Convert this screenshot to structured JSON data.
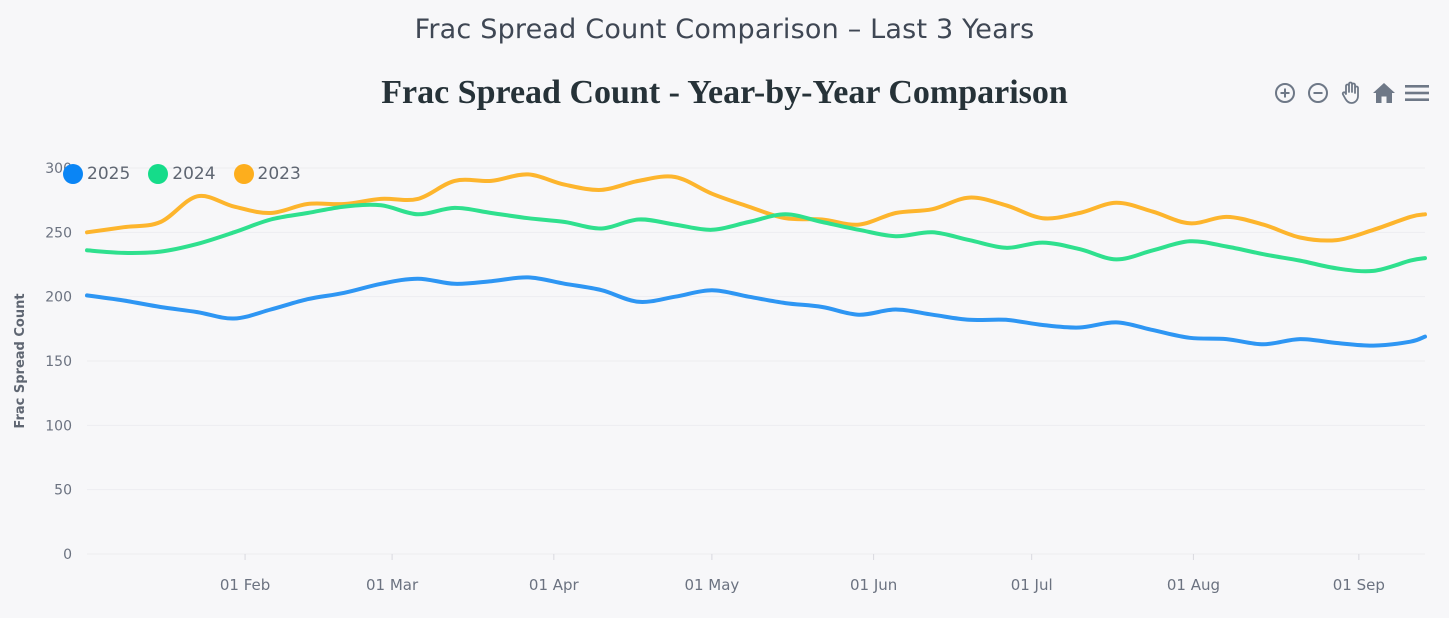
{
  "page": {
    "title": "Frac Spread Count Comparison – Last 3 Years"
  },
  "toolbar": {
    "icons": [
      "zoom-in-icon",
      "zoom-out-icon",
      "pan-hand-icon",
      "home-icon",
      "menu-icon"
    ]
  },
  "colors": {
    "2025": "#2e96f3",
    "2024": "#2fe08e",
    "2023": "#fdb52d",
    "grid": "#ececf0",
    "axis_text": "#6b7280",
    "ylabel": "#5f6672"
  },
  "chart_data": {
    "type": "line",
    "title": "Frac Spread Count - Year-by-Year Comparison",
    "xlabel": "",
    "ylabel": "Frac Spread Count",
    "ylim": [
      0,
      300
    ],
    "yticks": [
      0,
      50,
      100,
      150,
      200,
      250,
      300
    ],
    "x_domain_weeks": [
      0,
      36.4
    ],
    "xticks": [
      {
        "label": "01 Feb",
        "week": 4.3
      },
      {
        "label": "01 Mar",
        "week": 8.3
      },
      {
        "label": "01 Apr",
        "week": 12.7
      },
      {
        "label": "01 May",
        "week": 17.0
      },
      {
        "label": "01 Jun",
        "week": 21.4
      },
      {
        "label": "01 Jul",
        "week": 25.7
      },
      {
        "label": "01 Aug",
        "week": 30.1
      },
      {
        "label": "01 Sep",
        "week": 34.6
      }
    ],
    "legend": "top-left",
    "x": [
      0,
      1,
      2,
      3,
      4,
      5,
      6,
      7,
      8,
      9,
      10,
      11,
      12,
      13,
      14,
      15,
      16,
      17,
      18,
      19,
      20,
      21,
      22,
      23,
      24,
      25,
      26,
      27,
      28,
      29,
      30,
      31,
      32,
      33,
      34,
      35,
      36,
      36.4
    ],
    "series": [
      {
        "name": "2025",
        "values": [
          201,
          197,
          192,
          188,
          183,
          190,
          198,
          203,
          210,
          214,
          210,
          212,
          215,
          210,
          205,
          196,
          200,
          205,
          200,
          195,
          192,
          186,
          190,
          186,
          182,
          182,
          178,
          176,
          180,
          174,
          168,
          167,
          163,
          167,
          164,
          162,
          165,
          169
        ]
      },
      {
        "name": "2024",
        "values": [
          236,
          234,
          235,
          241,
          250,
          260,
          265,
          270,
          271,
          264,
          269,
          265,
          261,
          258,
          253,
          260,
          256,
          252,
          258,
          264,
          258,
          252,
          247,
          250,
          244,
          238,
          242,
          237,
          229,
          236,
          243,
          239,
          233,
          228,
          222,
          220,
          228,
          230
        ]
      },
      {
        "name": "2023",
        "values": [
          250,
          254,
          258,
          278,
          270,
          265,
          272,
          272,
          276,
          276,
          290,
          290,
          295,
          287,
          283,
          290,
          293,
          280,
          270,
          261,
          260,
          256,
          265,
          268,
          277,
          271,
          261,
          265,
          273,
          266,
          257,
          262,
          256,
          246,
          244,
          252,
          262,
          264
        ]
      }
    ]
  }
}
